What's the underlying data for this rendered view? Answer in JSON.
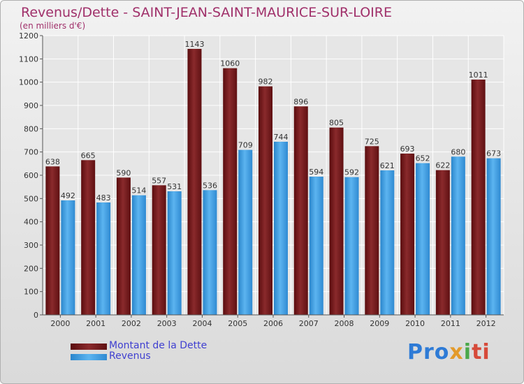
{
  "title": "Revenus/Dette - SAINT-JEAN-SAINT-MAURICE-SUR-LOIRE",
  "subtitle": "(en milliers d'€)",
  "legend": {
    "dette": "Montant de la Dette",
    "revenus": "Revenus"
  },
  "logo": {
    "text": "Proxiti",
    "parts": [
      "Pro",
      "x",
      "i",
      "ti"
    ]
  },
  "colors": {
    "dette": "#6b1214",
    "revenus": "#3a9ee0",
    "title": "#a0306a"
  },
  "chart_data": {
    "type": "bar",
    "categories": [
      "2000",
      "2001",
      "2002",
      "2003",
      "2004",
      "2005",
      "2006",
      "2007",
      "2008",
      "2009",
      "2010",
      "2011",
      "2012"
    ],
    "series": [
      {
        "name": "Montant de la Dette",
        "values": [
          638,
          665,
          590,
          557,
          1143,
          1060,
          982,
          896,
          805,
          725,
          693,
          622,
          1011
        ]
      },
      {
        "name": "Revenus",
        "values": [
          492,
          483,
          514,
          531,
          536,
          709,
          744,
          594,
          592,
          621,
          652,
          680,
          673
        ]
      }
    ],
    "ylim": [
      0,
      1200
    ],
    "yticks": [
      0,
      100,
      200,
      300,
      400,
      500,
      600,
      700,
      800,
      900,
      1000,
      1100,
      1200
    ],
    "grid": true,
    "legend_position": "bottom-left"
  }
}
